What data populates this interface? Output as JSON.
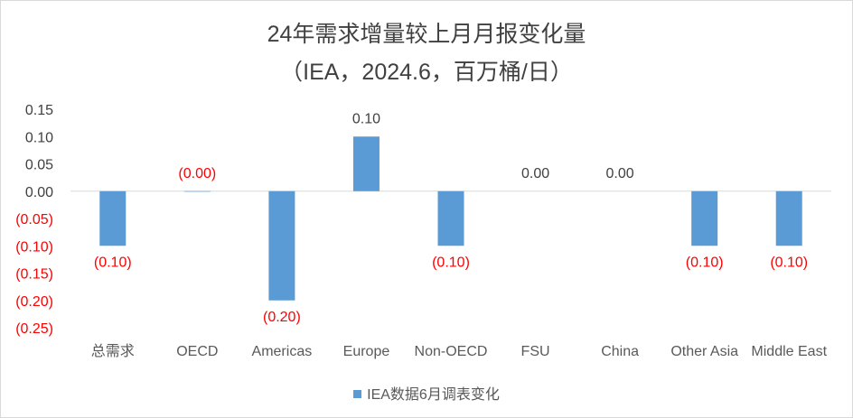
{
  "chart_data": {
    "type": "bar",
    "title": "24年需求增量较上月月报变化量",
    "subtitle": "（IEA，2024.6，百万桶/日）",
    "categories": [
      "总需求",
      "OECD",
      "Americas",
      "Europe",
      "Non-OECD",
      "FSU",
      "China",
      "Other Asia",
      "Middle East"
    ],
    "series": [
      {
        "name": "IEA数据6月调表变化",
        "values": [
          -0.1,
          -0.001,
          -0.2,
          0.1,
          -0.1,
          0.0,
          0.0,
          -0.1,
          -0.1
        ],
        "data_labels": [
          "(0.10)",
          "(0.00)",
          "(0.20)",
          "0.10",
          "(0.10)",
          "0.00",
          "0.00",
          "(0.10)",
          "(0.10)"
        ]
      }
    ],
    "y_ticks": [
      "0.15",
      "0.10",
      "0.05",
      "0.00",
      "(0.05)",
      "(0.10)",
      "(0.15)",
      "(0.20)",
      "(0.25)"
    ],
    "ylim": [
      -0.25,
      0.15
    ],
    "grid": false,
    "legend_position": "bottom",
    "colors": {
      "bar": "#5b9bd5",
      "negative_label": "#ff0000",
      "positive_label": "#404040",
      "axis": "#d9d9d9"
    }
  }
}
